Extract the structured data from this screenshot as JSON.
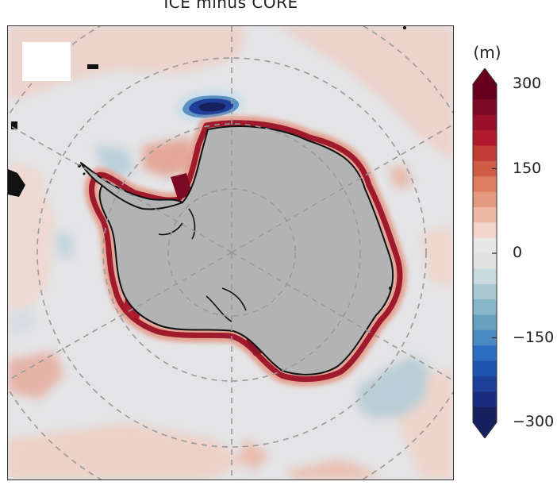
{
  "title": "ICE minus CORE",
  "map": {
    "projection": "south-polar-stereographic",
    "graticule": "dashed",
    "masked_land_color": "#b3b3b3",
    "ocean_base_color": "#e4e4e6"
  },
  "colorbar": {
    "unit": "(m)",
    "min": -300,
    "max": 300,
    "extend": "both",
    "ticks": [
      {
        "value": 300,
        "label": "300"
      },
      {
        "value": 150,
        "label": "150"
      },
      {
        "value": 0,
        "label": "0"
      },
      {
        "value": -150,
        "label": "−150"
      },
      {
        "value": -300,
        "label": "−300"
      }
    ],
    "colors_top_to_bottom": [
      "#67001f",
      "#7d0a24",
      "#970f2b",
      "#b01a2e",
      "#c43a34",
      "#cf5a45",
      "#dc7c60",
      "#e49a80",
      "#ecb8a4",
      "#f2d6cb",
      "#e7e7e7",
      "#e2e2e2",
      "#c9d9e0",
      "#a9c8d4",
      "#88b6c9",
      "#66a1c0",
      "#4b8ac0",
      "#2c6fc0",
      "#1e55b0",
      "#1d3f98",
      "#1b2d7c",
      "#16205e"
    ]
  }
}
